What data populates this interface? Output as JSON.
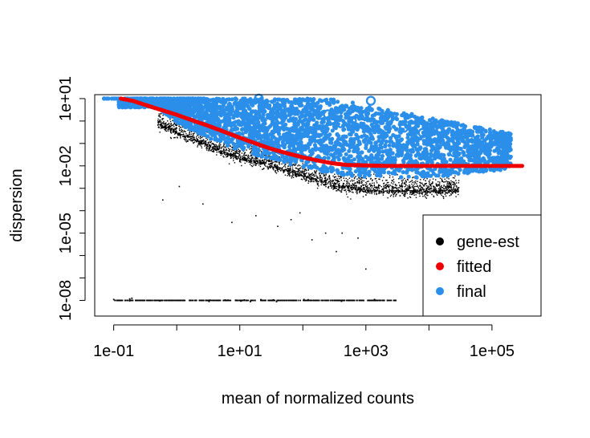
{
  "chart_data": {
    "type": "scatter",
    "title": "",
    "xlabel": "mean of normalized counts",
    "ylabel": "dispersion",
    "x_scale": "log10",
    "y_scale": "log10",
    "xlim": [
      0.05,
      600000
    ],
    "ylim": [
      2e-09,
      15
    ],
    "x_ticks": [
      0.1,
      1,
      10,
      100,
      1000,
      10000,
      100000
    ],
    "x_tick_labels": [
      "1e-01",
      "",
      "1e+01",
      "",
      "1e+03",
      "",
      "1e+05"
    ],
    "y_ticks": [
      10,
      1,
      0.1,
      0.01,
      0.001,
      0.0001,
      1e-05,
      1e-06,
      1e-07,
      1e-08
    ],
    "y_tick_labels": [
      "1e+01",
      "",
      "",
      "1e-02",
      "",
      "",
      "1e-05",
      "",
      "",
      "1e-08"
    ],
    "grid": false,
    "legend_position": "bottom-right",
    "legend": [
      {
        "label": "gene-est",
        "color": "#000000"
      },
      {
        "label": "fitted",
        "color": "#ee0000"
      },
      {
        "label": "final",
        "color": "#2b8fea"
      }
    ],
    "series": [
      {
        "name": "gene-est",
        "color": "#000000",
        "trend": {
          "x": [
            0.5,
            1,
            2,
            5,
            10,
            30,
            100,
            300,
            1000,
            3000,
            10000,
            30000
          ],
          "y": [
            0.8,
            0.35,
            0.15,
            0.05,
            0.025,
            0.012,
            0.004,
            0.0015,
            0.0009,
            0.0008,
            0.0008,
            0.0009
          ]
        },
        "zero_floor": {
          "y": 1e-08,
          "x_range": [
            0.1,
            3000
          ]
        },
        "outliers": [
          {
            "x": 0.6,
            "y": 0.0003
          },
          {
            "x": 1.1,
            "y": 0.0012
          },
          {
            "x": 2.6,
            "y": 0.0002
          },
          {
            "x": 7.5,
            "y": 3e-05
          },
          {
            "x": 18,
            "y": 6e-05
          },
          {
            "x": 40,
            "y": 2e-05
          },
          {
            "x": 65,
            "y": 4e-05
          },
          {
            "x": 140,
            "y": 5e-06
          },
          {
            "x": 230,
            "y": 1e-05
          },
          {
            "x": 340,
            "y": 1.5e-06
          },
          {
            "x": 750,
            "y": 6e-06
          },
          {
            "x": 1000,
            "y": 2.5e-07
          },
          {
            "x": 420,
            "y": 1e-05
          },
          {
            "x": 90,
            "y": 8e-05
          }
        ]
      },
      {
        "name": "fitted",
        "color": "#ee0000",
        "x": [
          0.13,
          0.2,
          0.3,
          0.5,
          1,
          2,
          3,
          5,
          10,
          20,
          30,
          50,
          100,
          200,
          300,
          500,
          1000,
          2000,
          3000,
          5000,
          10000,
          30000,
          100000,
          200000,
          300000
        ],
        "y": [
          10,
          8,
          5.5,
          3.5,
          1.9,
          0.95,
          0.65,
          0.38,
          0.18,
          0.09,
          0.06,
          0.04,
          0.024,
          0.016,
          0.013,
          0.011,
          0.0105,
          0.01,
          0.01,
          0.01,
          0.01,
          0.01,
          0.01,
          0.01,
          0.01
        ]
      },
      {
        "name": "final",
        "color": "#2b8fea",
        "upper_bound": 10,
        "lower_trend": {
          "x": [
            0.5,
            1,
            2,
            5,
            10,
            30,
            100,
            300,
            1000,
            3000,
            10000,
            30000,
            100000
          ],
          "y": [
            4,
            0.8,
            0.3,
            0.1,
            0.05,
            0.02,
            0.008,
            0.004,
            0.003,
            0.003,
            0.003,
            0.004,
            0.006
          ]
        },
        "outliers_circled": [
          {
            "x": 20,
            "y": 10
          },
          {
            "x": 30,
            "y": 5
          },
          {
            "x": 60,
            "y": 2.5
          },
          {
            "x": 150,
            "y": 4
          },
          {
            "x": 250,
            "y": 2
          },
          {
            "x": 600,
            "y": 1
          },
          {
            "x": 1200,
            "y": 8
          },
          {
            "x": 2000,
            "y": 1.5
          },
          {
            "x": 4000,
            "y": 0.5
          },
          {
            "x": 8000,
            "y": 0.3
          },
          {
            "x": 15000,
            "y": 0.12
          },
          {
            "x": 25000,
            "y": 0.04
          },
          {
            "x": 45,
            "y": 1.2
          },
          {
            "x": 400,
            "y": 0.8
          }
        ]
      }
    ]
  }
}
